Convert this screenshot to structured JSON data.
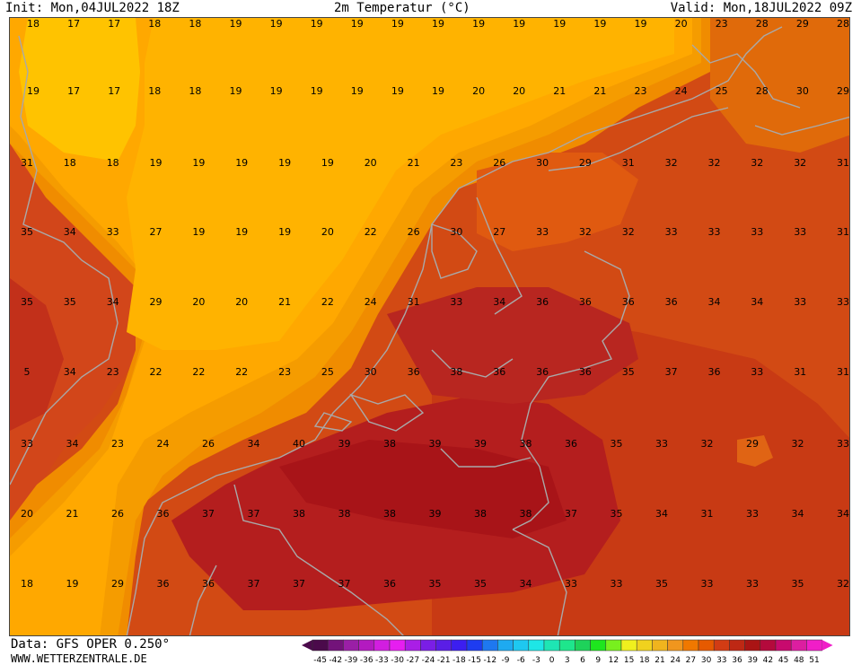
{
  "header": {
    "init": "Init: Mon,04JUL2022 18Z",
    "title": "2m Temperatur (°C)",
    "valid": "Valid: Mon,18JUL2022 09Z"
  },
  "footer": {
    "data_line": "Data: GFS OPER 0.250°",
    "site_line": "WWW.WETTERZENTRALE.DE"
  },
  "colorbar": {
    "ticks": [
      "-45",
      "-42",
      "-39",
      "-36",
      "-33",
      "-30",
      "-27",
      "-24",
      "-21",
      "-18",
      "-15",
      "-12",
      "-9",
      "-6",
      "-3",
      "0",
      "3",
      "6",
      "9",
      "12",
      "15",
      "18",
      "21",
      "24",
      "27",
      "30",
      "33",
      "36",
      "39",
      "42",
      "45",
      "48",
      "51"
    ],
    "colors": [
      "#4b0a4b",
      "#73137a",
      "#9a1fa6",
      "#b31ac0",
      "#d21ee0",
      "#e61ef0",
      "#aa1ee6",
      "#7a1ee6",
      "#5a1ee6",
      "#3c1ef0",
      "#1e3cf0",
      "#1e78f0",
      "#1eaaf0",
      "#1ec8f0",
      "#1ee6e6",
      "#1ee6b4",
      "#1ee68c",
      "#1ed25a",
      "#1ee61e",
      "#78f01e",
      "#f0f01e",
      "#f0d21e",
      "#f0b41e",
      "#f0961e",
      "#f07800",
      "#e65a00",
      "#d23c14",
      "#be2814",
      "#aa1414",
      "#b40a3c",
      "#c80a6e",
      "#dc1ea0",
      "#f01ec8"
    ]
  },
  "map_values": [
    [
      "18",
      "17",
      "17",
      "18",
      "18",
      "19",
      "19",
      "19",
      "19",
      "19",
      "19",
      "19",
      "19",
      "19",
      "19",
      "19",
      "20",
      "23",
      "28",
      "29",
      "28"
    ],
    [
      "19",
      "17",
      "17",
      "18",
      "18",
      "19",
      "19",
      "19",
      "19",
      "19",
      "19",
      "20",
      "20",
      "21",
      "21",
      "23",
      "24",
      "25",
      "28",
      "30",
      "29"
    ],
    [
      "31",
      "18",
      "18",
      "19",
      "19",
      "19",
      "19",
      "19",
      "20",
      "21",
      "23",
      "26",
      "30",
      "29",
      "31",
      "32",
      "32",
      "32",
      "32",
      "31"
    ],
    [
      "35",
      "34",
      "33",
      "27",
      "19",
      "19",
      "19",
      "20",
      "22",
      "26",
      "30",
      "27",
      "33",
      "32",
      "32",
      "33",
      "33",
      "33",
      "33",
      "31"
    ],
    [
      "35",
      "35",
      "34",
      "29",
      "20",
      "20",
      "21",
      "22",
      "24",
      "31",
      "33",
      "34",
      "36",
      "36",
      "36",
      "36",
      "34",
      "34",
      "33",
      "33"
    ],
    [
      "5",
      "34",
      "23",
      "22",
      "22",
      "22",
      "23",
      "25",
      "30",
      "36",
      "38",
      "36",
      "36",
      "36",
      "35",
      "37",
      "36",
      "33",
      "31",
      "31"
    ],
    [
      "33",
      "34",
      "23",
      "24",
      "26",
      "34",
      "40",
      "39",
      "38",
      "39",
      "39",
      "38",
      "36",
      "35",
      "33",
      "32",
      "29",
      "32",
      "33"
    ],
    [
      "20",
      "21",
      "26",
      "36",
      "37",
      "37",
      "38",
      "38",
      "38",
      "39",
      "38",
      "38",
      "37",
      "35",
      "34",
      "31",
      "33",
      "34",
      "34"
    ],
    [
      "18",
      "19",
      "29",
      "36",
      "36",
      "37",
      "37",
      "37",
      "36",
      "35",
      "35",
      "34",
      "33",
      "33",
      "35",
      "33",
      "33",
      "35",
      "32"
    ]
  ]
}
